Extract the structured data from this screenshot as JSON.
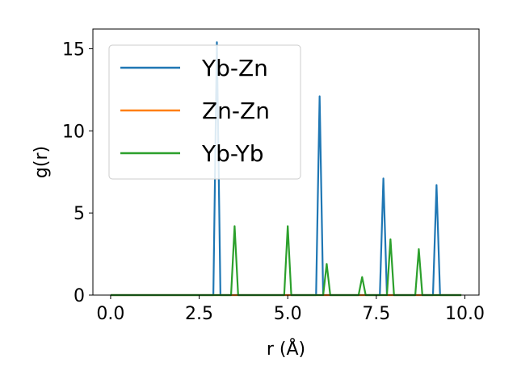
{
  "chart_data": {
    "type": "line",
    "xlabel": "r (Å)",
    "ylabel": "g(r)",
    "xlim": [
      -0.5,
      10.4
    ],
    "ylim": [
      0,
      16.2
    ],
    "xticks": [
      0.0,
      2.5,
      5.0,
      7.5,
      10.0
    ],
    "xtick_labels": [
      "0.0",
      "2.5",
      "5.0",
      "7.5",
      "10.0"
    ],
    "yticks": [
      0,
      5,
      10,
      15
    ],
    "ytick_labels": [
      "0",
      "5",
      "10",
      "15"
    ],
    "grid": false,
    "legend_position": "top-left",
    "series": [
      {
        "name": "Yb-Zn",
        "color": "#1f77b4",
        "x": [
          0.0,
          2.9,
          3.0,
          3.1,
          5.8,
          5.9,
          6.0,
          7.6,
          7.7,
          7.8,
          9.1,
          9.2,
          9.3,
          9.9
        ],
        "y": [
          0,
          0,
          15.4,
          0,
          0,
          12.1,
          0,
          0,
          7.1,
          0,
          0,
          6.7,
          0,
          0
        ]
      },
      {
        "name": "Zn-Zn",
        "color": "#ff7f0e",
        "x": [
          0.0,
          9.9
        ],
        "y": [
          0,
          0
        ]
      },
      {
        "name": "Yb-Yb",
        "color": "#2ca02c",
        "x": [
          0.0,
          3.4,
          3.5,
          3.6,
          4.9,
          5.0,
          5.1,
          6.0,
          6.1,
          6.2,
          7.0,
          7.1,
          7.2,
          7.8,
          7.9,
          8.0,
          8.6,
          8.7,
          8.8,
          9.9
        ],
        "y": [
          0,
          0,
          4.2,
          0,
          0,
          4.2,
          0,
          0,
          1.9,
          0,
          0,
          1.1,
          0,
          0,
          3.4,
          0,
          0,
          2.8,
          0,
          0
        ]
      }
    ]
  }
}
